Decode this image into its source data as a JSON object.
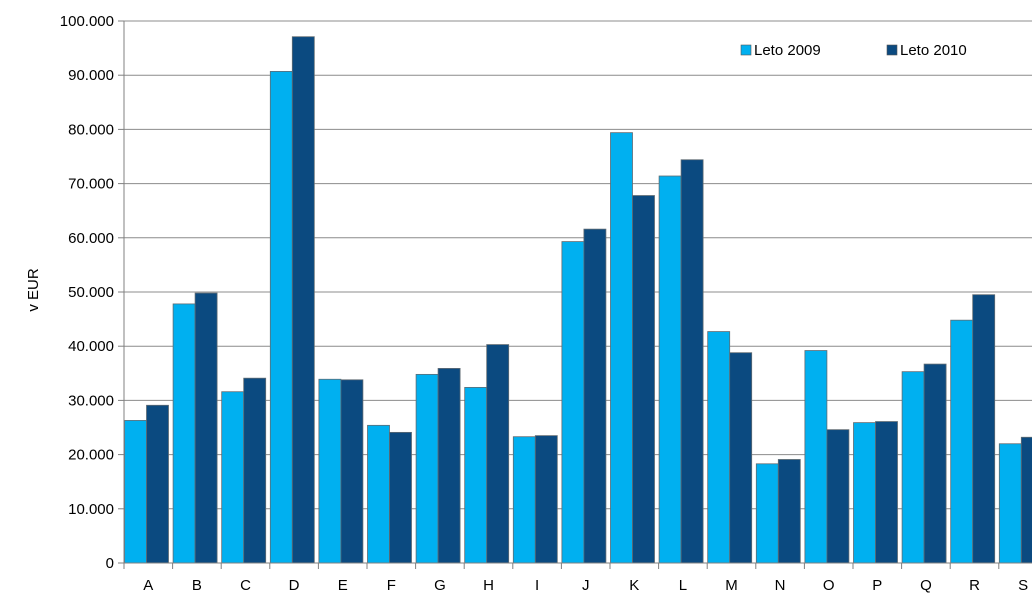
{
  "chart_data": {
    "type": "bar",
    "title": "",
    "xlabel": "",
    "ylabel": "v EUR",
    "ylim": [
      0,
      100000
    ],
    "yticks": [
      0,
      10000,
      20000,
      30000,
      40000,
      50000,
      60000,
      70000,
      80000,
      90000,
      100000
    ],
    "ytick_labels": [
      "0",
      "10.000",
      "20.000",
      "30.000",
      "40.000",
      "50.000",
      "60.000",
      "70.000",
      "80.000",
      "90.000",
      "100.000"
    ],
    "grid": "horizontal",
    "legend_position": "top-right",
    "categories": [
      "A",
      "B",
      "C",
      "D",
      "E",
      "F",
      "G",
      "H",
      "I",
      "J",
      "K",
      "L",
      "M",
      "N",
      "O",
      "P",
      "Q",
      "R",
      "S"
    ],
    "series": [
      {
        "name": "Leto 2009",
        "color": "#00B0F0",
        "values": [
          26300,
          47800,
          31600,
          90700,
          33900,
          25400,
          34800,
          32400,
          23300,
          59300,
          79400,
          71400,
          42700,
          18300,
          39200,
          25900,
          35300,
          44800,
          22000
        ]
      },
      {
        "name": "Leto 2010",
        "color": "#0B4A80",
        "values": [
          29100,
          49800,
          34100,
          97100,
          33800,
          24100,
          35900,
          40300,
          23500,
          61600,
          67800,
          74400,
          38800,
          19100,
          24600,
          26100,
          36700,
          49500,
          23200
        ]
      }
    ]
  }
}
